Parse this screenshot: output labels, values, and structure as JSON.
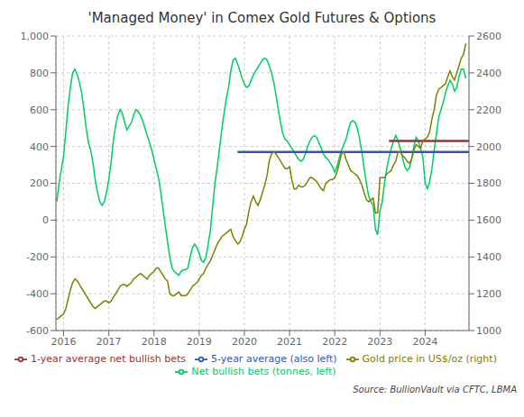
{
  "chart_data": {
    "type": "line",
    "title": "'Managed Money'  in Comex Gold Futures  & Options",
    "annotation": "Source: BullionVault via CFTC, LBMA",
    "xlim": [
      2015.83,
      2024.97
    ],
    "xticks": [
      2016,
      2017,
      2018,
      2019,
      2020,
      2021,
      2022,
      2023,
      2024
    ],
    "ylim": [
      -600,
      1000
    ],
    "yticks": [
      -600,
      -400,
      -200,
      0,
      200,
      400,
      600,
      800,
      {
        "value": 1000,
        "label": "1,000"
      }
    ],
    "y2lim": [
      1000,
      2600
    ],
    "y2ticks": [
      1000,
      1200,
      1400,
      1600,
      1800,
      2000,
      2200,
      2400,
      2600
    ],
    "grid": true,
    "legend": "bottom",
    "x": [
      2015.85,
      2015.9,
      2016.0,
      2016.05,
      2016.1,
      2016.15,
      2016.2,
      2016.25,
      2016.3,
      2016.35,
      2016.4,
      2016.45,
      2016.5,
      2016.55,
      2016.6,
      2016.65,
      2016.7,
      2016.75,
      2016.8,
      2016.85,
      2016.9,
      2016.95,
      2017.0,
      2017.05,
      2017.1,
      2017.15,
      2017.2,
      2017.25,
      2017.3,
      2017.35,
      2017.4,
      2017.45,
      2017.5,
      2017.55,
      2017.6,
      2017.65,
      2017.7,
      2017.75,
      2017.8,
      2017.85,
      2017.9,
      2017.95,
      2018.0,
      2018.05,
      2018.1,
      2018.15,
      2018.2,
      2018.25,
      2018.3,
      2018.35,
      2018.4,
      2018.45,
      2018.5,
      2018.55,
      2018.6,
      2018.65,
      2018.7,
      2018.75,
      2018.8,
      2018.85,
      2018.9,
      2018.95,
      2019.0,
      2019.05,
      2019.1,
      2019.15,
      2019.2,
      2019.25,
      2019.3,
      2019.35,
      2019.4,
      2019.45,
      2019.5,
      2019.55,
      2019.6,
      2019.65,
      2019.7,
      2019.75,
      2019.8,
      2019.85,
      2019.9,
      2019.95,
      2020.0,
      2020.05,
      2020.1,
      2020.15,
      2020.2,
      2020.25,
      2020.3,
      2020.35,
      2020.4,
      2020.45,
      2020.5,
      2020.55,
      2020.6,
      2020.65,
      2020.7,
      2020.75,
      2020.8,
      2020.85,
      2020.9,
      2020.95,
      2021.0,
      2021.05,
      2021.1,
      2021.15,
      2021.2,
      2021.25,
      2021.3,
      2021.35,
      2021.4,
      2021.45,
      2021.5,
      2021.55,
      2021.6,
      2021.65,
      2021.7,
      2021.75,
      2021.8,
      2021.85,
      2021.9,
      2021.95,
      2022.0,
      2022.05,
      2022.1,
      2022.15,
      2022.2,
      2022.25,
      2022.3,
      2022.35,
      2022.4,
      2022.45,
      2022.5,
      2022.55,
      2022.6,
      2022.65,
      2022.7,
      2022.75,
      2022.8,
      2022.85,
      2022.9,
      2022.95,
      2023.0,
      2023.05,
      2023.1,
      2023.15,
      2023.2,
      2023.25,
      2023.3,
      2023.35,
      2023.4,
      2023.45,
      2023.5,
      2023.55,
      2023.6,
      2023.65,
      2023.7,
      2023.75,
      2023.8,
      2023.85,
      2023.9,
      2023.95,
      2024.0,
      2024.05,
      2024.1,
      2024.15,
      2024.2,
      2024.25,
      2024.3,
      2024.35,
      2024.4,
      2024.45,
      2024.5,
      2024.55,
      2024.6,
      2024.65,
      2024.7,
      2024.75,
      2024.8,
      2024.85,
      2024.9
    ],
    "series": [
      {
        "name": "Net bullish bets (tonnes, left)",
        "color": "#00CC66",
        "values": [
          100,
          200,
          350,
          480,
          620,
          720,
          800,
          820,
          790,
          750,
          690,
          600,
          500,
          420,
          380,
          310,
          220,
          150,
          100,
          80,
          100,
          150,
          220,
          310,
          430,
          510,
          570,
          600,
          580,
          530,
          490,
          510,
          530,
          570,
          600,
          590,
          570,
          540,
          500,
          460,
          420,
          380,
          330,
          280,
          230,
          150,
          60,
          -30,
          -120,
          -200,
          -260,
          -280,
          -290,
          -300,
          -280,
          -270,
          -270,
          -260,
          -200,
          -150,
          -130,
          -150,
          -180,
          -220,
          -230,
          -200,
          -130,
          -50,
          80,
          200,
          290,
          390,
          490,
          580,
          660,
          720,
          810,
          870,
          880,
          850,
          810,
          770,
          740,
          720,
          730,
          760,
          790,
          810,
          830,
          850,
          870,
          880,
          870,
          840,
          800,
          750,
          680,
          600,
          530,
          470,
          440,
          430,
          410,
          390,
          370,
          350,
          330,
          320,
          330,
          360,
          400,
          430,
          450,
          460,
          450,
          420,
          390,
          360,
          340,
          330,
          310,
          290,
          260,
          290,
          340,
          380,
          410,
          440,
          490,
          530,
          540,
          530,
          500,
          440,
          370,
          280,
          200,
          130,
          100,
          80,
          -50,
          -80,
          50,
          100,
          200,
          280,
          340,
          390,
          430,
          460,
          430,
          390,
          340,
          290,
          270,
          280,
          330,
          400,
          450,
          430,
          390,
          340,
          200,
          170,
          210,
          280,
          380,
          470,
          560,
          600,
          640,
          690,
          730,
          760,
          740,
          700,
          720,
          780,
          820,
          820,
          770
        ]
      },
      {
        "name": "1-year average net bullish bets",
        "color": "#993333",
        "x": [
          2023.2,
          2024.97
        ],
        "values": [
          430,
          430
        ]
      },
      {
        "name": "5-year average (also left)",
        "color": "#3355BB",
        "x": [
          2019.85,
          2024.97
        ],
        "values": [
          370,
          370
        ]
      },
      {
        "name": "Gold price in US$/oz (right)",
        "color": "#808000",
        "axis": "y2",
        "values": [
          1060,
          1070,
          1090,
          1120,
          1170,
          1220,
          1260,
          1280,
          1270,
          1250,
          1230,
          1210,
          1190,
          1170,
          1150,
          1130,
          1120,
          1130,
          1140,
          1150,
          1160,
          1160,
          1150,
          1160,
          1180,
          1200,
          1220,
          1240,
          1250,
          1250,
          1240,
          1250,
          1260,
          1280,
          1290,
          1300,
          1310,
          1300,
          1290,
          1280,
          1300,
          1310,
          1320,
          1340,
          1340,
          1320,
          1300,
          1280,
          1270,
          1200,
          1190,
          1190,
          1200,
          1210,
          1190,
          1190,
          1190,
          1200,
          1220,
          1240,
          1250,
          1260,
          1280,
          1300,
          1310,
          1340,
          1360,
          1380,
          1410,
          1440,
          1470,
          1490,
          1510,
          1520,
          1530,
          1540,
          1550,
          1510,
          1490,
          1470,
          1480,
          1510,
          1550,
          1580,
          1650,
          1700,
          1730,
          1700,
          1680,
          1710,
          1750,
          1790,
          1840,
          1920,
          1960,
          1970,
          1960,
          1940,
          1920,
          1900,
          1880,
          1880,
          1890,
          1820,
          1770,
          1770,
          1790,
          1780,
          1780,
          1790,
          1810,
          1830,
          1830,
          1820,
          1810,
          1790,
          1770,
          1760,
          1800,
          1810,
          1820,
          1820,
          1830,
          1860,
          1910,
          1960,
          1970,
          1930,
          1900,
          1870,
          1860,
          1850,
          1840,
          1820,
          1790,
          1750,
          1710,
          1700,
          1710,
          1720,
          1640,
          1640,
          1830,
          1830,
          1830,
          1850,
          1860,
          1870,
          1900,
          1920,
          1970,
          1970,
          1950,
          1940,
          1920,
          1910,
          1930,
          1980,
          2010,
          2000,
          1990,
          2030,
          2040,
          2050,
          2080,
          2150,
          2200,
          2280,
          2310,
          2320,
          2330,
          2340,
          2380,
          2410,
          2380,
          2360,
          2400,
          2440,
          2480,
          2500,
          2560
        ]
      }
    ]
  }
}
